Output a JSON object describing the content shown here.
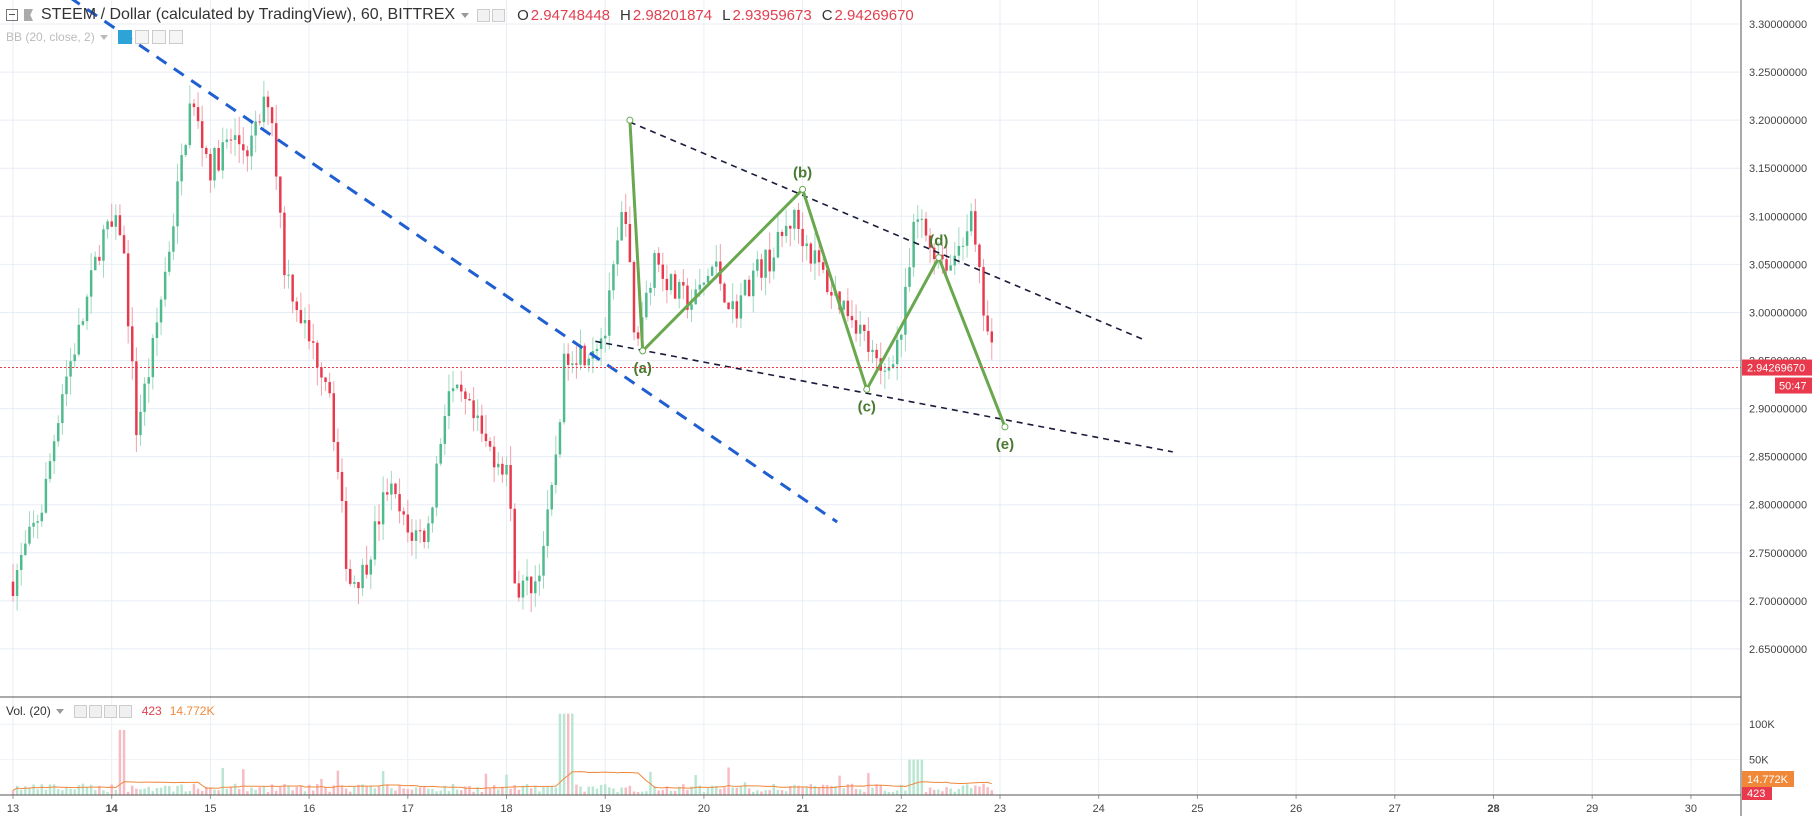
{
  "header": {
    "symbol": "STEEM / Dollar (calculated by TradingView), 60, BITTREX",
    "ohlc": [
      {
        "label": "O",
        "value": "2.94748448"
      },
      {
        "label": "H",
        "value": "2.98201874"
      },
      {
        "label": "L",
        "value": "2.93959673"
      },
      {
        "label": "C",
        "value": "2.94269670"
      }
    ]
  },
  "indicator": {
    "label": "BB (20, close, 2)"
  },
  "volume_legend": {
    "label": "Vol. (20)",
    "value": "423",
    "ma_value": "14.772K"
  },
  "colors": {
    "up": "#26a69a",
    "down": "#ef5350",
    "wave": "#6aa84f",
    "trend": "#1f5fd1",
    "channel": "#1a1a3a"
  },
  "chart_data": {
    "type": "candlestick",
    "x_ticks": [
      "13",
      "14",
      "15",
      "16",
      "17",
      "18",
      "19",
      "20",
      "21",
      "22",
      "23",
      "24",
      "25",
      "26",
      "27",
      "28",
      "29",
      "30"
    ],
    "bold_ticks": [
      "14",
      "21",
      "28"
    ],
    "x_range": [
      13,
      30.5
    ],
    "y_ticks": [
      "3.30000000",
      "3.25000000",
      "3.20000000",
      "3.15000000",
      "3.10000000",
      "3.05000000",
      "3.00000000",
      "2.95000000",
      "2.90000000",
      "2.85000000",
      "2.80000000",
      "2.75000000",
      "2.70000000",
      "2.65000000"
    ],
    "y_range": [
      2.6,
      3.325
    ],
    "last_price": "2.94269670",
    "countdown": "50:47",
    "volume_ticks": [
      "100K",
      "50K"
    ],
    "volume_last_ma": "14.772K",
    "volume_last": "423",
    "price_path": [
      [
        13.0,
        2.72
      ],
      [
        13.3,
        2.8
      ],
      [
        13.5,
        2.92
      ],
      [
        13.7,
        2.99
      ],
      [
        13.9,
        3.08
      ],
      [
        14.1,
        3.09
      ],
      [
        14.25,
        2.88
      ],
      [
        14.4,
        2.95
      ],
      [
        14.6,
        3.08
      ],
      [
        14.8,
        3.22
      ],
      [
        15.0,
        3.15
      ],
      [
        15.2,
        3.18
      ],
      [
        15.4,
        3.17
      ],
      [
        15.6,
        3.23
      ],
      [
        15.75,
        3.05
      ],
      [
        16.0,
        2.97
      ],
      [
        16.2,
        2.93
      ],
      [
        16.4,
        2.72
      ],
      [
        16.55,
        2.73
      ],
      [
        16.8,
        2.82
      ],
      [
        17.0,
        2.77
      ],
      [
        17.2,
        2.77
      ],
      [
        17.4,
        2.92
      ],
      [
        17.6,
        2.9
      ],
      [
        17.8,
        2.86
      ],
      [
        18.0,
        2.84
      ],
      [
        18.1,
        2.71
      ],
      [
        18.3,
        2.72
      ],
      [
        18.45,
        2.8
      ],
      [
        18.6,
        2.96
      ],
      [
        18.8,
        2.96
      ],
      [
        19.0,
        2.98
      ],
      [
        19.2,
        3.12
      ],
      [
        19.3,
        2.96
      ],
      [
        19.5,
        3.06
      ],
      [
        19.7,
        3.02
      ],
      [
        19.9,
        3.01
      ],
      [
        20.1,
        3.05
      ],
      [
        20.3,
        3.0
      ],
      [
        20.5,
        3.04
      ],
      [
        20.7,
        3.06
      ],
      [
        20.9,
        3.1
      ],
      [
        21.1,
        3.06
      ],
      [
        21.3,
        3.02
      ],
      [
        21.5,
        3.0
      ],
      [
        21.6,
        2.98
      ],
      [
        21.8,
        2.93
      ],
      [
        22.0,
        2.98
      ],
      [
        22.15,
        3.1
      ],
      [
        22.3,
        3.07
      ],
      [
        22.5,
        3.05
      ],
      [
        22.7,
        3.1
      ],
      [
        22.85,
        2.99
      ],
      [
        22.95,
        2.94
      ]
    ],
    "wave_points": [
      {
        "label": "",
        "x": 19.25,
        "y": 3.2
      },
      {
        "label": "(a)",
        "x": 19.38,
        "y": 2.96
      },
      {
        "label": "(b)",
        "x": 21.0,
        "y": 3.128
      },
      {
        "label": "(c)",
        "x": 21.65,
        "y": 2.92
      },
      {
        "label": "(d)",
        "x": 22.38,
        "y": 3.057
      },
      {
        "label": "(e)",
        "x": 23.05,
        "y": 2.881
      }
    ],
    "channel_upper": [
      [
        19.25,
        3.198
      ],
      [
        24.45,
        2.972
      ]
    ],
    "channel_lower": [
      [
        18.9,
        2.97
      ],
      [
        24.75,
        2.855
      ]
    ],
    "trendline": [
      [
        13.4,
        3.34
      ],
      [
        21.35,
        2.782
      ]
    ]
  }
}
